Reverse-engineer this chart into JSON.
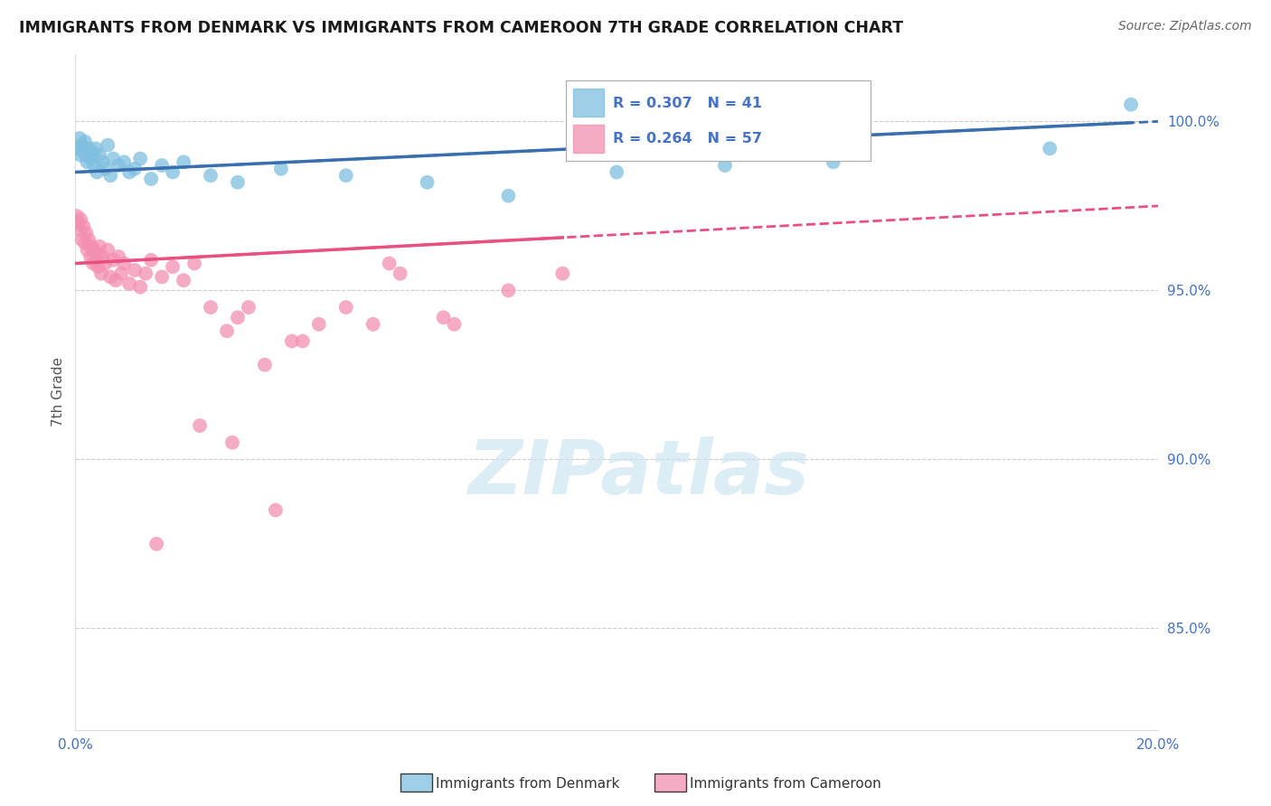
{
  "title": "IMMIGRANTS FROM DENMARK VS IMMIGRANTS FROM CAMEROON 7TH GRADE CORRELATION CHART",
  "source": "Source: ZipAtlas.com",
  "ylabel": "7th Grade",
  "xlim": [
    0.0,
    20.0
  ],
  "ylim": [
    82.0,
    102.0
  ],
  "denmark_R": 0.307,
  "denmark_N": 41,
  "cameroon_R": 0.264,
  "cameroon_N": 57,
  "denmark_color": "#7fbfdf",
  "cameroon_color": "#f48fb1",
  "denmark_line_color": "#3a6faf",
  "cameroon_line_color": "#e85080",
  "background_color": "#ffffff",
  "grid_color": "#cccccc",
  "y_ticks": [
    85.0,
    90.0,
    95.0,
    100.0
  ],
  "y_tick_labels": [
    "85.0%",
    "90.0%",
    "95.0%",
    "100.0%"
  ],
  "tick_color": "#4472c4",
  "denmark_x": [
    0.05,
    0.08,
    0.1,
    0.12,
    0.15,
    0.18,
    0.2,
    0.22,
    0.25,
    0.28,
    0.3,
    0.32,
    0.35,
    0.38,
    0.4,
    0.45,
    0.5,
    0.55,
    0.6,
    0.65,
    0.7,
    0.8,
    0.9,
    1.0,
    1.1,
    1.2,
    1.4,
    1.6,
    1.8,
    2.0,
    2.5,
    3.0,
    3.8,
    5.0,
    6.5,
    8.0,
    10.0,
    12.0,
    14.0,
    18.0,
    19.5
  ],
  "denmark_y": [
    99.2,
    99.5,
    99.0,
    99.3,
    99.1,
    99.4,
    99.0,
    98.8,
    99.2,
    98.9,
    99.1,
    99.0,
    98.7,
    99.2,
    98.5,
    99.0,
    98.8,
    98.6,
    99.3,
    98.4,
    98.9,
    98.7,
    98.8,
    98.5,
    98.6,
    98.9,
    98.3,
    98.7,
    98.5,
    98.8,
    98.4,
    98.2,
    98.6,
    98.4,
    98.2,
    97.8,
    98.5,
    98.7,
    98.8,
    99.2,
    100.5
  ],
  "cameroon_x": [
    0.03,
    0.06,
    0.08,
    0.1,
    0.12,
    0.15,
    0.18,
    0.2,
    0.22,
    0.25,
    0.28,
    0.3,
    0.33,
    0.35,
    0.38,
    0.4,
    0.42,
    0.45,
    0.48,
    0.5,
    0.55,
    0.6,
    0.65,
    0.7,
    0.75,
    0.8,
    0.85,
    0.9,
    1.0,
    1.1,
    1.2,
    1.3,
    1.4,
    1.6,
    1.8,
    2.0,
    2.2,
    2.5,
    2.8,
    3.0,
    3.5,
    4.0,
    4.5,
    5.0,
    5.5,
    6.0,
    7.0,
    8.0,
    9.0,
    3.2,
    5.8,
    6.8,
    4.2,
    2.3,
    2.9,
    3.7,
    1.5
  ],
  "cameroon_y": [
    97.2,
    97.0,
    96.8,
    97.1,
    96.5,
    96.9,
    96.4,
    96.7,
    96.2,
    96.5,
    96.0,
    96.3,
    95.8,
    96.2,
    95.9,
    96.1,
    95.7,
    96.3,
    95.5,
    96.0,
    95.8,
    96.2,
    95.4,
    95.9,
    95.3,
    96.0,
    95.5,
    95.8,
    95.2,
    95.6,
    95.1,
    95.5,
    95.9,
    95.4,
    95.7,
    95.3,
    95.8,
    94.5,
    93.8,
    94.2,
    92.8,
    93.5,
    94.0,
    94.5,
    94.0,
    95.5,
    94.0,
    95.0,
    95.5,
    94.5,
    95.8,
    94.2,
    93.5,
    91.0,
    90.5,
    88.5,
    87.5
  ]
}
